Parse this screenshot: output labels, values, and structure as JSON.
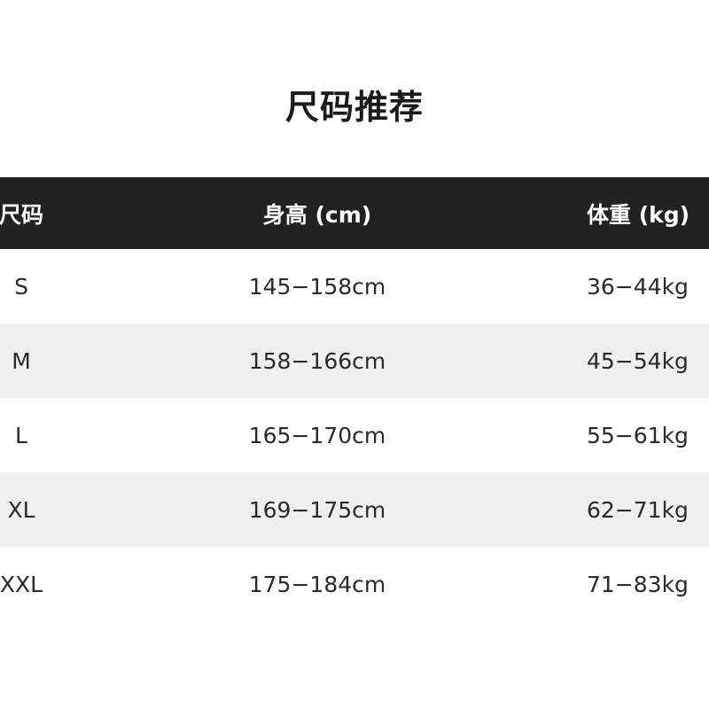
{
  "title": "尺码推荐",
  "header": {
    "size": "尺码",
    "height": "身高 (cm)",
    "weight": "体重 (kg)"
  },
  "rows": [
    {
      "size": "S",
      "height": "145−158cm",
      "weight": "36−44kg"
    },
    {
      "size": "M",
      "height": "158−166cm",
      "weight": "45−54kg"
    },
    {
      "size": "L",
      "height": "165−170cm",
      "weight": "55−61kg"
    },
    {
      "size": "XL",
      "height": "169−175cm",
      "weight": "62−71kg"
    },
    {
      "size": "XXL",
      "height": "175−184cm",
      "weight": "71−83kg"
    }
  ],
  "colors": {
    "header_bg": "#222222",
    "alt_row_bg": "#efefef"
  }
}
